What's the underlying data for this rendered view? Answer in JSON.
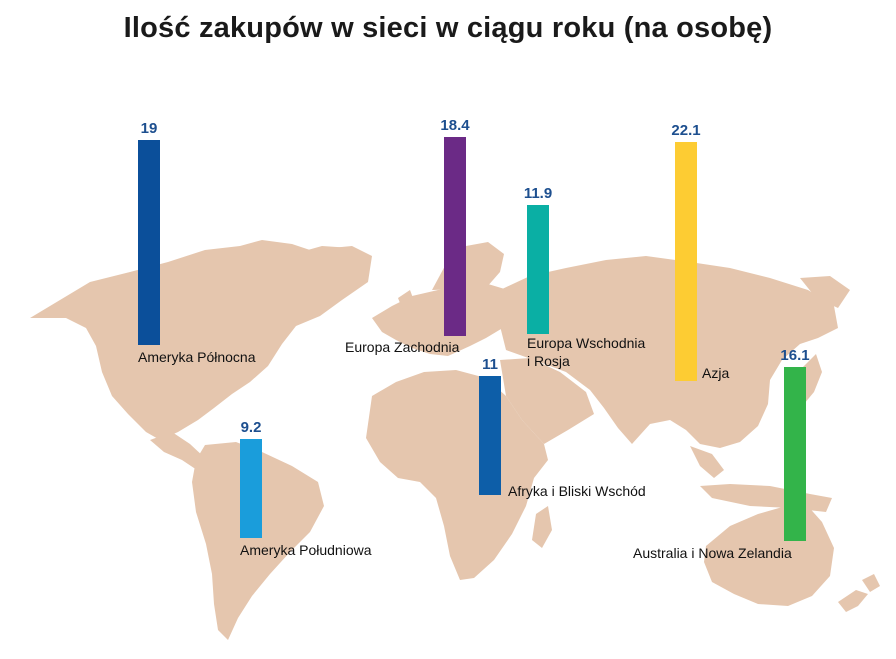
{
  "title": "Ilość zakupów w sieci w ciągu roku (na osobę)",
  "colors": {
    "map": "#e5c6ae",
    "value_text": "#1d4f8f"
  },
  "chart_data": {
    "type": "bar",
    "title": "Ilość zakupów w sieci w ciągu roku (na osobę)",
    "categories": [
      "Ameryka Północna",
      "Ameryka Południowa",
      "Europa Zachodnia",
      "Afryka i Bliski Wschód",
      "Europa Wschodnia i Rosja",
      "Azja",
      "Australia i Nowa Zelandia"
    ],
    "values": [
      19,
      9.2,
      18.4,
      11,
      11.9,
      22.1,
      16.1
    ],
    "value_labels": [
      "19",
      "9.2",
      "18.4",
      "11",
      "11.9",
      "22.1",
      "16.1"
    ],
    "colors": [
      "#0b4f9a",
      "#1a9ddb",
      "#6b2a86",
      "#0d5ea8",
      "#0aafa4",
      "#fdcc33",
      "#33b44a"
    ],
    "labels": [
      [
        "Ameryka Północna"
      ],
      [
        "Ameryka Południowa"
      ],
      [
        "Europa Zachodnia"
      ],
      [
        "Afryka i Bliski Wschód"
      ],
      [
        "Europa Wschodnia",
        "i Rosja"
      ],
      [
        "Azja"
      ],
      [
        "Australia i Nowa Zelandia"
      ]
    ],
    "xlabel": "",
    "ylabel": "",
    "grid": false,
    "legend": "none"
  }
}
